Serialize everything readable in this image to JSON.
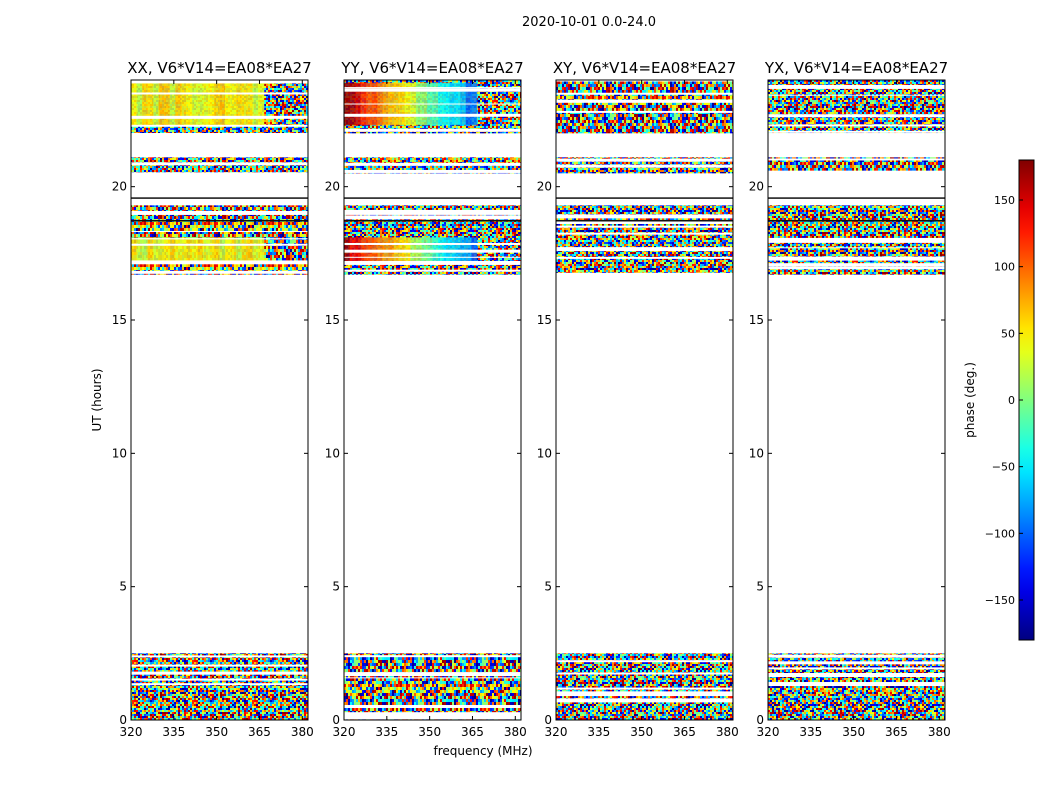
{
  "chart_data": {
    "type": "heatmap",
    "suptitle": "2020-10-01 0.0-24.0",
    "xlabel": "frequency (MHz)",
    "ylabel": "UT (hours)",
    "xlim": [
      320,
      382
    ],
    "ylim": [
      0,
      24
    ],
    "xticks": [
      320,
      335,
      350,
      365,
      380
    ],
    "yticks": [
      0,
      5,
      10,
      15,
      20
    ],
    "panels": [
      {
        "title": "XX, V6*V14=EA08*EA27",
        "pol": "XX"
      },
      {
        "title": "YY, V6*V14=EA08*EA27",
        "pol": "YY"
      },
      {
        "title": "XY, V6*V14=EA08*EA27",
        "pol": "XY"
      },
      {
        "title": "YX, V6*V14=EA08*EA27",
        "pol": "YX"
      }
    ],
    "data_blocks_ut_hours": [
      [
        0.0,
        2.5
      ],
      [
        16.7,
        19.3
      ],
      [
        20.5,
        21.1
      ],
      [
        22.0,
        24.0
      ]
    ],
    "colorbar": {
      "label": "phase (deg.)",
      "range": [
        -180,
        180
      ],
      "ticks": [
        150,
        100,
        50,
        0,
        -50,
        -100,
        -150
      ],
      "tick_labels": [
        "150",
        "100",
        "50",
        "0",
        "−50",
        "−100",
        "−150"
      ],
      "colormap": "jet"
    }
  }
}
